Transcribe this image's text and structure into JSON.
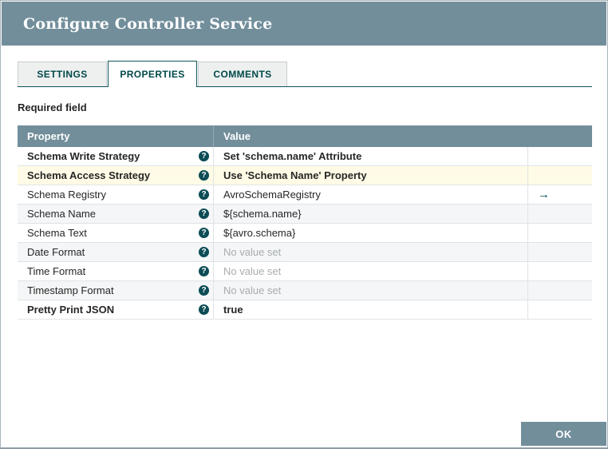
{
  "dialog": {
    "title": "Configure Controller Service"
  },
  "tabs": [
    {
      "label": "SETTINGS"
    },
    {
      "label": "PROPERTIES"
    },
    {
      "label": "COMMENTS"
    }
  ],
  "required_field_label": "Required field",
  "table": {
    "columns": [
      "Property",
      "Value"
    ],
    "rows": [
      {
        "property": "Schema Write Strategy",
        "value": "Set 'schema.name' Attribute"
      },
      {
        "property": "Schema Access Strategy",
        "value": "Use 'Schema Name' Property"
      },
      {
        "property": "Schema Registry",
        "value": "AvroSchemaRegistry"
      },
      {
        "property": "Schema Name",
        "value": "${schema.name}"
      },
      {
        "property": "Schema Text",
        "value": "${avro.schema}"
      },
      {
        "property": "Date Format",
        "value": "No value set"
      },
      {
        "property": "Time Format",
        "value": "No value set"
      },
      {
        "property": "Timestamp Format",
        "value": "No value set"
      },
      {
        "property": "Pretty Print JSON",
        "value": "true"
      }
    ]
  },
  "icons": {
    "help": "?",
    "goto": "→"
  },
  "buttons": {
    "ok_label": "OK"
  },
  "colors": {
    "header_bg": "#728e9b",
    "tab_text": "#004849",
    "selected_row_bg": "#fffbe6",
    "zebra_row_bg": "#f4f6f7",
    "unset_text": "#a8adb0",
    "help_icon_bg": "#0b4c55"
  }
}
